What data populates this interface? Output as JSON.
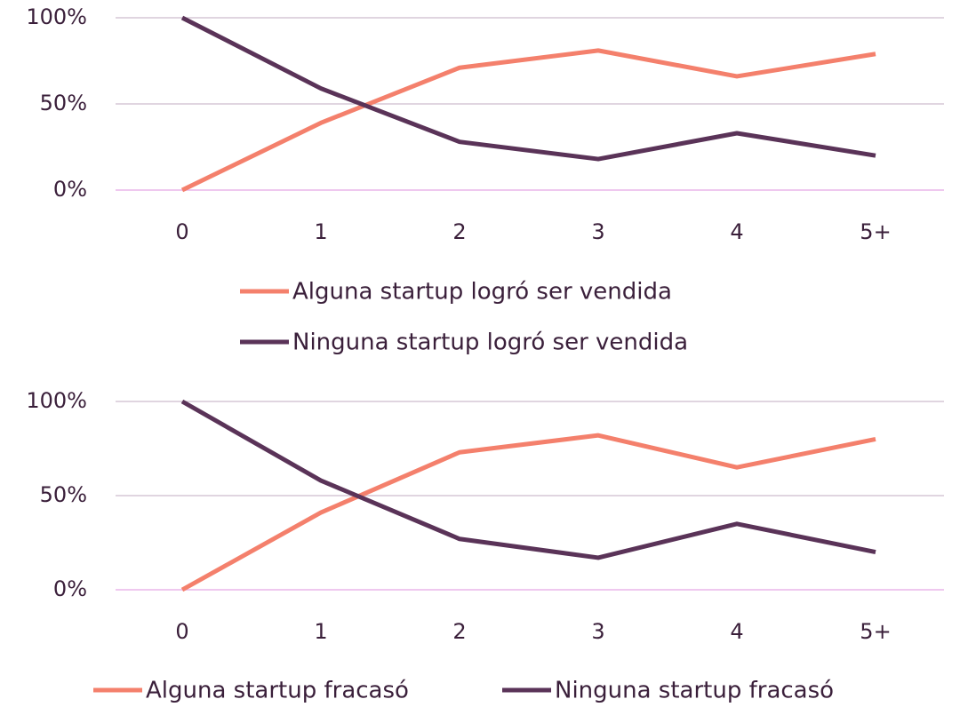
{
  "chart_data": [
    {
      "type": "line",
      "categories": [
        "0",
        "1",
        "2",
        "3",
        "4",
        "5+"
      ],
      "series": [
        {
          "name": "Alguna startup logró ser vendida",
          "color": "#f4806c",
          "values": [
            0,
            39,
            71,
            81,
            66,
            79
          ]
        },
        {
          "name": "Ninguna startup logró ser vendida",
          "color": "#5a3358",
          "values": [
            100,
            59,
            28,
            18,
            33,
            20
          ]
        }
      ],
      "ylim": [
        0,
        100
      ],
      "yticks": [
        {
          "value": 0,
          "label": "0%"
        },
        {
          "value": 50,
          "label": "50%"
        },
        {
          "value": 100,
          "label": "100%"
        }
      ],
      "grid": true
    },
    {
      "type": "line",
      "categories": [
        "0",
        "1",
        "2",
        "3",
        "4",
        "5+"
      ],
      "series": [
        {
          "name": "Alguna startup fracasó",
          "color": "#f4806c",
          "values": [
            0,
            41,
            73,
            82,
            65,
            80
          ]
        },
        {
          "name": "Ninguna startup fracasó",
          "color": "#5a3358",
          "values": [
            100,
            58,
            27,
            17,
            35,
            20
          ]
        }
      ],
      "ylim": [
        0,
        100
      ],
      "yticks": [
        {
          "value": 0,
          "label": "0%"
        },
        {
          "value": 50,
          "label": "50%"
        },
        {
          "value": 100,
          "label": "100%"
        }
      ],
      "grid": true
    }
  ]
}
